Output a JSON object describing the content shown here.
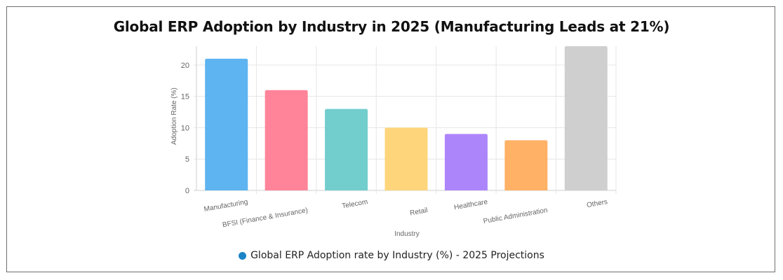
{
  "chart_data": {
    "type": "bar",
    "title": "Global ERP Adoption by Industry in 2025 (Manufacturing Leads at 21%)",
    "xlabel": "Industry",
    "ylabel": "Adoption Rate (%)",
    "ylim": [
      0,
      23
    ],
    "yticks": [
      "0",
      "5",
      "10",
      "15",
      "20"
    ],
    "categories": [
      "Manufacturing",
      "BFSI (Finance & Insurance)",
      "Telecom",
      "Retail",
      "Healthcare",
      "Public Administration",
      "Others"
    ],
    "series": [
      {
        "name": "Global ERP Adoption rate by Industry (%) - 2025 Projections",
        "values": [
          21,
          16,
          13,
          10,
          9,
          8,
          23
        ]
      }
    ],
    "bar_colors": [
      "#5db4f0",
      "#ff8499",
      "#72cdcd",
      "#ffd57c",
      "#ad85fb",
      "#ffb165",
      "#cfcfcf"
    ],
    "legend_color": "#1a84c7",
    "grid": true,
    "legend_position": "bottom"
  }
}
